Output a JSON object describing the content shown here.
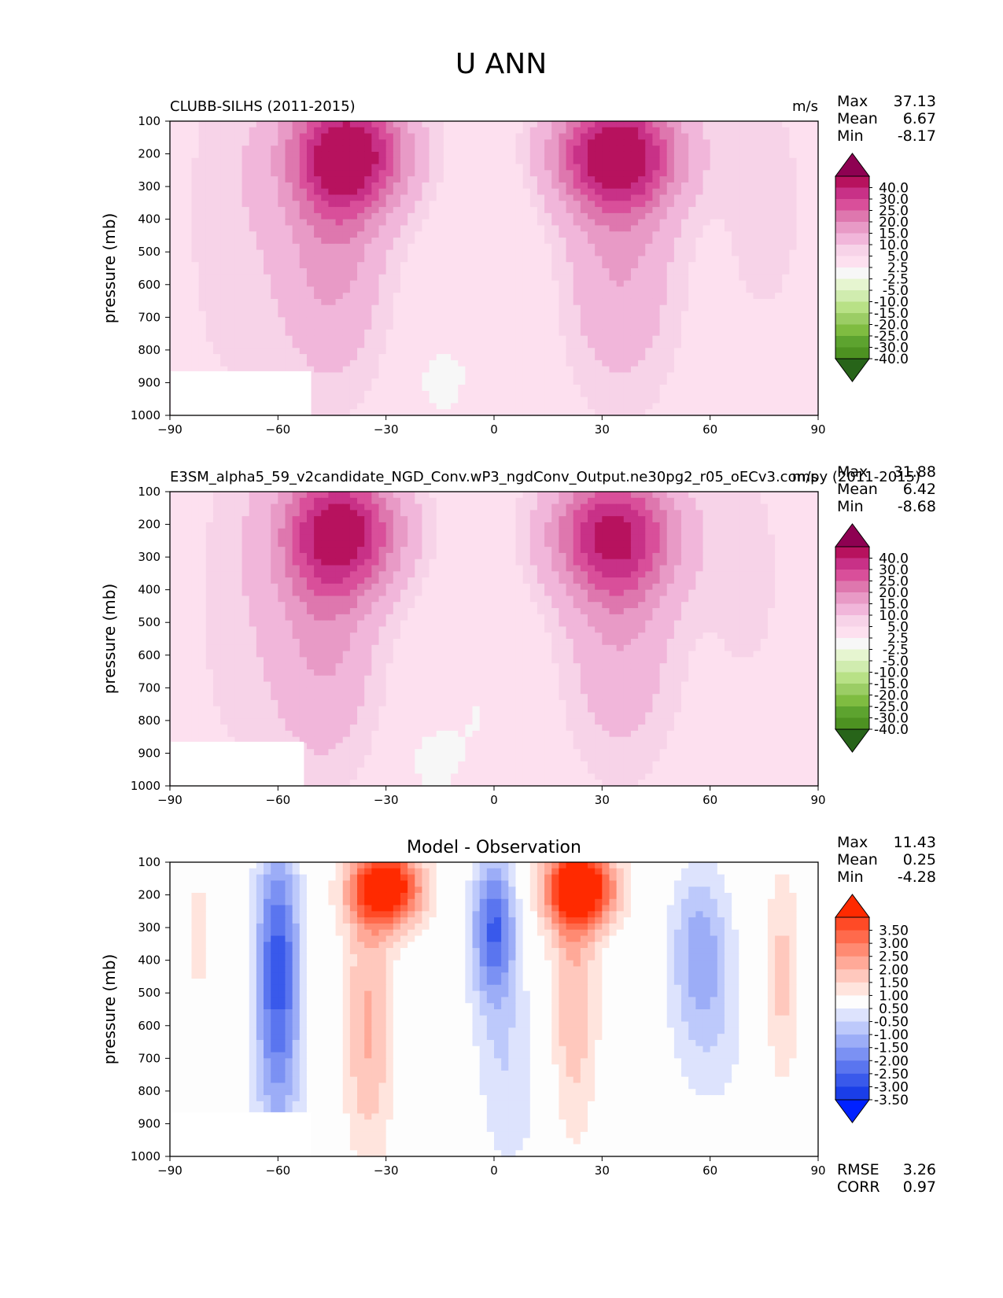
{
  "title": "U ANN",
  "units_label": "m/s",
  "ylabel": "pressure (mb)",
  "stats_labels": {
    "max": "Max",
    "mean": "Mean",
    "min": "Min",
    "rmse": "RMSE",
    "corr": "CORR"
  },
  "chart_data": [
    {
      "type": "contour",
      "title": "CLUBB-SILHS (2011-2015)",
      "units": "m/s",
      "xlabel": "",
      "ylabel": "pressure (mb)",
      "xticks": [
        "−90",
        "−60",
        "−30",
        "0",
        "30",
        "60",
        "90"
      ],
      "yticks": [
        "100",
        "200",
        "300",
        "400",
        "500",
        "600",
        "700",
        "800",
        "900",
        "1000"
      ],
      "xlim": [
        -90,
        90
      ],
      "ylim": [
        1000,
        100
      ],
      "stats": {
        "max": "37.13",
        "mean": "6.67",
        "min": "-8.17"
      },
      "colorbar": {
        "labels": [
          "40.0",
          "30.0",
          "25.0",
          "20.0",
          "15.0",
          "10.0",
          "5.0",
          "2.5",
          "-2.5",
          "-5.0",
          "-10.0",
          "-15.0",
          "-20.0",
          "-25.0",
          "-30.0",
          "-40.0"
        ],
        "colors": [
          "#8e0152",
          "#b7125e",
          "#c83187",
          "#d94f9a",
          "#de77ae",
          "#e89ac6",
          "#f1b6da",
          "#f7d3e8",
          "#fde0ef",
          "#f7f7f7",
          "#e6f5d0",
          "#d0ecaf",
          "#b8e186",
          "#9bcd65",
          "#7fbc41",
          "#5da32f",
          "#4d9221",
          "#276419"
        ]
      },
      "features": [
        {
          "center": [
            -40,
            200
          ],
          "value": 31.0,
          "sx": 16,
          "sy": 180
        },
        {
          "center": [
            -45,
            450
          ],
          "value": 12.0,
          "sx": 14,
          "sy": 420
        },
        {
          "center": [
            34,
            200
          ],
          "value": 33.0,
          "sx": 17,
          "sy": 170
        },
        {
          "center": [
            35,
            500
          ],
          "value": 10.0,
          "sx": 15,
          "sy": 420
        },
        {
          "center": [
            -72,
            400
          ],
          "value": 3.5,
          "sx": 16,
          "sy": 600
        },
        {
          "center": [
            75,
            350
          ],
          "value": 3.5,
          "sx": 12,
          "sy": 400
        },
        {
          "center": [
            0,
            700
          ],
          "value": -3.0,
          "sx": 12,
          "sy": 450
        },
        {
          "center": [
            -16,
            900
          ],
          "value": -3.5,
          "sx": 8,
          "sy": 150
        },
        {
          "center": [
            -87,
            800
          ],
          "value": -3.0,
          "sx": 3,
          "sy": 200
        }
      ]
    },
    {
      "type": "contour",
      "title": "E3SM_alpha5_59_v2candidate_NGD_Conv.wP3_ngdConv_Output.ne30pg2_r05_oECv3.compy (2011-2015)",
      "units": "m/s",
      "xlabel": "",
      "ylabel": "pressure (mb)",
      "xticks": [
        "−90",
        "−60",
        "−30",
        "0",
        "30",
        "60",
        "90"
      ],
      "yticks": [
        "100",
        "200",
        "300",
        "400",
        "500",
        "600",
        "700",
        "800",
        "900",
        "1000"
      ],
      "xlim": [
        -90,
        90
      ],
      "ylim": [
        1000,
        100
      ],
      "stats": {
        "max": "31.88",
        "mean": "6.42",
        "min": "-8.68"
      },
      "colorbar": {
        "labels": [
          "40.0",
          "30.0",
          "25.0",
          "20.0",
          "15.0",
          "10.0",
          "5.0",
          "2.5",
          "-2.5",
          "-5.0",
          "-10.0",
          "-15.0",
          "-20.0",
          "-25.0",
          "-30.0",
          "-40.0"
        ],
        "colors": [
          "#8e0152",
          "#b7125e",
          "#c83187",
          "#d94f9a",
          "#de77ae",
          "#e89ac6",
          "#f1b6da",
          "#f7d3e8",
          "#fde0ef",
          "#f7f7f7",
          "#e6f5d0",
          "#d0ecaf",
          "#b8e186",
          "#9bcd65",
          "#7fbc41",
          "#5da32f",
          "#4d9221",
          "#276419"
        ]
      },
      "features": [
        {
          "center": [
            -42,
            220
          ],
          "value": 29.0,
          "sx": 16,
          "sy": 190
        },
        {
          "center": [
            -47,
            480
          ],
          "value": 11.0,
          "sx": 14,
          "sy": 430
        },
        {
          "center": [
            33,
            230
          ],
          "value": 27.0,
          "sx": 17,
          "sy": 190
        },
        {
          "center": [
            35,
            500
          ],
          "value": 9.0,
          "sx": 15,
          "sy": 420
        },
        {
          "center": [
            -70,
            450
          ],
          "value": 3.0,
          "sx": 16,
          "sy": 600
        },
        {
          "center": [
            70,
            350
          ],
          "value": 3.0,
          "sx": 12,
          "sy": 400
        },
        {
          "center": [
            -5,
            780
          ],
          "value": -3.0,
          "sx": 12,
          "sy": 380
        },
        {
          "center": [
            -18,
            930
          ],
          "value": -3.5,
          "sx": 7,
          "sy": 120
        },
        {
          "center": [
            -87,
            800
          ],
          "value": -3.0,
          "sx": 3,
          "sy": 200
        }
      ]
    },
    {
      "type": "contour",
      "title": "Model - Observation",
      "units": "",
      "xlabel": "",
      "ylabel": "pressure (mb)",
      "xticks": [
        "−90",
        "−60",
        "−30",
        "0",
        "30",
        "60",
        "90"
      ],
      "yticks": [
        "100",
        "200",
        "300",
        "400",
        "500",
        "600",
        "700",
        "800",
        "900",
        "1000"
      ],
      "xlim": [
        -90,
        90
      ],
      "ylim": [
        1000,
        100
      ],
      "stats": {
        "max": "11.43",
        "mean": "0.25",
        "min": "-4.28",
        "rmse": "3.26",
        "corr": "0.97"
      },
      "colorbar": {
        "labels": [
          "3.50",
          "3.00",
          "2.50",
          "2.00",
          "1.50",
          "1.00",
          "0.50",
          "-0.50",
          "-1.00",
          "-1.50",
          "-2.00",
          "-2.50",
          "-3.00",
          "-3.50"
        ],
        "colors": [
          "#ff2a00",
          "#ff4a26",
          "#ff6a4c",
          "#ff8a72",
          "#ffa998",
          "#ffc8bd",
          "#ffe4dd",
          "#fdfdfd",
          "#dde3fd",
          "#bdc9fb",
          "#9cadf7",
          "#7b91f3",
          "#5a75ef",
          "#3959eb",
          "#1a3ee8",
          "#0021ff"
        ]
      },
      "features": [
        {
          "center": [
            -30,
            180
          ],
          "value": 4.5,
          "sx": 10,
          "sy": 120
        },
        {
          "center": [
            -35,
            600
          ],
          "value": 1.6,
          "sx": 7,
          "sy": 420
        },
        {
          "center": [
            24,
            180
          ],
          "value": 4.5,
          "sx": 10,
          "sy": 120
        },
        {
          "center": [
            22,
            500
          ],
          "value": 1.5,
          "sx": 7,
          "sy": 450
        },
        {
          "center": [
            -60,
            350
          ],
          "value": -2.5,
          "sx": 6,
          "sy": 350
        },
        {
          "center": [
            -60,
            700
          ],
          "value": -1.5,
          "sx": 7,
          "sy": 400
        },
        {
          "center": [
            0,
            300
          ],
          "value": -3.0,
          "sx": 6,
          "sy": 220
        },
        {
          "center": [
            3,
            750
          ],
          "value": -1.0,
          "sx": 11,
          "sy": 330
        },
        {
          "center": [
            57,
            350
          ],
          "value": -1.5,
          "sx": 8,
          "sy": 250
        },
        {
          "center": [
            60,
            600
          ],
          "value": -0.8,
          "sx": 11,
          "sy": 300
        },
        {
          "center": [
            80,
            450
          ],
          "value": 1.2,
          "sx": 5,
          "sy": 350
        },
        {
          "center": [
            -82,
            320
          ],
          "value": 0.7,
          "sx": 4,
          "sy": 250
        },
        {
          "center": [
            -12,
            900
          ],
          "value": 0.6,
          "sx": 10,
          "sy": 250
        }
      ]
    }
  ]
}
